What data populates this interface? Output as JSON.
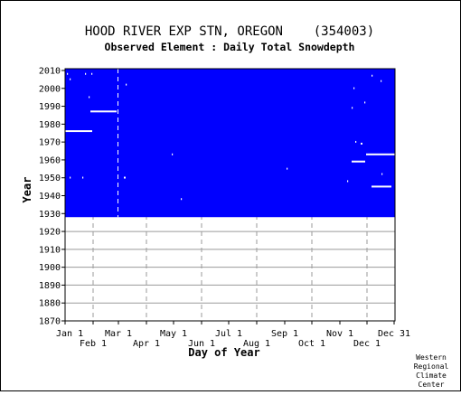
{
  "chart_data": {
    "type": "heatmap",
    "title": "HOOD RIVER EXP STN, OREGON    (354003)",
    "subtitle": "Observed Element : Daily Total Snowdepth",
    "xlabel": "Day of Year",
    "ylabel": "Year",
    "ylim": [
      1870,
      2011
    ],
    "y_ticks": [
      1870,
      1880,
      1890,
      1900,
      1910,
      1920,
      1930,
      1940,
      1950,
      1960,
      1970,
      1980,
      1990,
      2000,
      2010
    ],
    "x_ticks_upper": [
      {
        "day": 1,
        "label": "Jan 1"
      },
      {
        "day": 60,
        "label": "Mar 1"
      },
      {
        "day": 121,
        "label": "May 1"
      },
      {
        "day": 182,
        "label": "Jul 1"
      },
      {
        "day": 244,
        "label": "Sep 1"
      },
      {
        "day": 305,
        "label": "Nov 1"
      },
      {
        "day": 365,
        "label": "Dec 31"
      }
    ],
    "x_ticks_lower": [
      {
        "day": 32,
        "label": "Feb 1"
      },
      {
        "day": 91,
        "label": "Apr 1"
      },
      {
        "day": 152,
        "label": "Jun 1"
      },
      {
        "day": 213,
        "label": "Aug 1"
      },
      {
        "day": 274,
        "label": "Oct 1"
      },
      {
        "day": 335,
        "label": "Dec 1"
      }
    ],
    "xlim": [
      1,
      366
    ],
    "data_coverage": {
      "start_year": 1928,
      "end_year": 2010,
      "value": "observed"
    },
    "missing_gaps": [
      {
        "year": 1976,
        "start_day": 1,
        "end_day": 31
      },
      {
        "year": 1987,
        "start_day": 29,
        "end_day": 58
      },
      {
        "year": 1963,
        "start_day": 334,
        "end_day": 366
      },
      {
        "year": 1959,
        "start_day": 318,
        "end_day": 333
      },
      {
        "year": 1945,
        "start_day": 340,
        "end_day": 362
      },
      {
        "year": 2008,
        "start_day": 3,
        "end_day": 4
      },
      {
        "year": 2008,
        "start_day": 23,
        "end_day": 24
      },
      {
        "year": 2008,
        "start_day": 30,
        "end_day": 31
      },
      {
        "year": 2005,
        "start_day": 6,
        "end_day": 7
      },
      {
        "year": 2002,
        "start_day": 68,
        "end_day": 69
      },
      {
        "year": 1995,
        "start_day": 27,
        "end_day": 28
      },
      {
        "year": 1963,
        "start_day": 119,
        "end_day": 120
      },
      {
        "year": 1955,
        "start_day": 246,
        "end_day": 247
      },
      {
        "year": 1950,
        "start_day": 66,
        "end_day": 68
      },
      {
        "year": 1950,
        "start_day": 20,
        "end_day": 21
      },
      {
        "year": 1950,
        "start_day": 6,
        "end_day": 7
      },
      {
        "year": 1938,
        "start_day": 129,
        "end_day": 130
      },
      {
        "year": 2007,
        "start_day": 340,
        "end_day": 341
      },
      {
        "year": 2004,
        "start_day": 350,
        "end_day": 351
      },
      {
        "year": 2000,
        "start_day": 320,
        "end_day": 321
      },
      {
        "year": 1992,
        "start_day": 332,
        "end_day": 333
      },
      {
        "year": 1989,
        "start_day": 318,
        "end_day": 319
      },
      {
        "year": 1970,
        "start_day": 322,
        "end_day": 323
      },
      {
        "year": 1969,
        "start_day": 328,
        "end_day": 330
      },
      {
        "year": 1952,
        "start_day": 351,
        "end_day": 352
      },
      {
        "year": 1948,
        "start_day": 313,
        "end_day": 314
      }
    ],
    "colors": {
      "observed": "#0000ff",
      "missing": "#ffffff",
      "grid": "#9a9a9a"
    },
    "grid": true
  },
  "credit": [
    "Western",
    "Regional",
    "Climate",
    "Center"
  ]
}
